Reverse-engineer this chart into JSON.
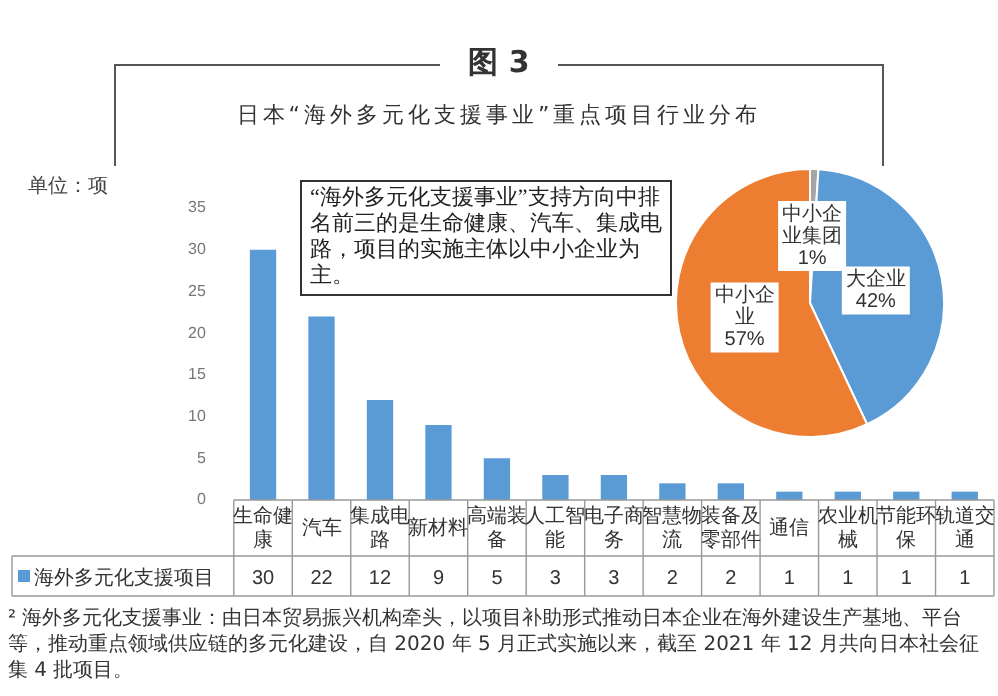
{
  "chart_data": [
    {
      "type": "bar",
      "title": "图 3",
      "subtitle": "日本“海外多元化支援事业”重点项目行业分布",
      "ylabel": "单位：项",
      "categories": [
        "生命健康",
        "汽车",
        "集成电路",
        "新材料",
        "高端装备",
        "人工智能",
        "电子商务",
        "智慧物流",
        "装备及零部件",
        "通信",
        "农业机械",
        "节能环保",
        "轨道交通"
      ],
      "series": [
        {
          "name": "海外多元化支援项目",
          "color": "#5b9bd5",
          "values": [
            30,
            22,
            12,
            9,
            5,
            3,
            3,
            2,
            2,
            1,
            1,
            1,
            1
          ]
        }
      ],
      "ylim": [
        0,
        35
      ],
      "yticks": [
        0,
        5,
        10,
        15,
        20,
        25,
        30,
        35
      ],
      "data_labels": true,
      "legend": "bottom left",
      "annotations": [
        "“海外多元化支援事业”支持方向中排名前三的是生命健康、汽车、集成电路，项目的实施主体以中小企业为主。",
        "² 海外多元化支援事业：由日本贸易振兴机构牵头，以项目补助形式推动日本企业在海外建设生产基地、平台等，推动重点领域供应链的多元化建设，自 2020 年 5 月正式实施以来，截至 2021 年 12 月共向日本社会征集 4 批项目。"
      ]
    },
    {
      "type": "pie",
      "categories": [
        "中小企业集团",
        "大企业",
        "中小企业"
      ],
      "values": [
        1,
        42,
        57
      ],
      "colors": [
        "#a5a5a5",
        "#5b9bd5",
        "#ed7d31"
      ],
      "value_labels": [
        "1%",
        "42%",
        "57%"
      ]
    }
  ]
}
